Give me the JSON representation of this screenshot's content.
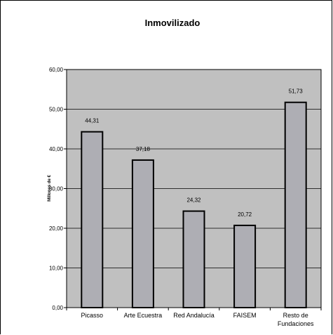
{
  "chart_data": {
    "type": "bar",
    "title": "Inmovilizado",
    "ylabel": "Millones de €",
    "xlabel": "",
    "categories": [
      "Picasso",
      "Arte Ecuestra",
      "Red Andalucía",
      "FAISEM",
      "Resto de\nFundaciones"
    ],
    "values": [
      44.31,
      37.18,
      24.32,
      20.72,
      51.73
    ],
    "value_labels": [
      "44,31",
      "37,18",
      "24,32",
      "20,72",
      "51,73"
    ],
    "ylim": [
      0,
      60
    ],
    "yticks": [
      "0,00",
      "10,00",
      "20,00",
      "30,00",
      "40,00",
      "50,00",
      "60,00"
    ],
    "grid": true,
    "legend": "none",
    "colors": {
      "bar_fill": "#aeaeb4",
      "plot_bg": "#c0c0c0",
      "bar_stroke": "#000000",
      "grid": "#000000"
    }
  }
}
